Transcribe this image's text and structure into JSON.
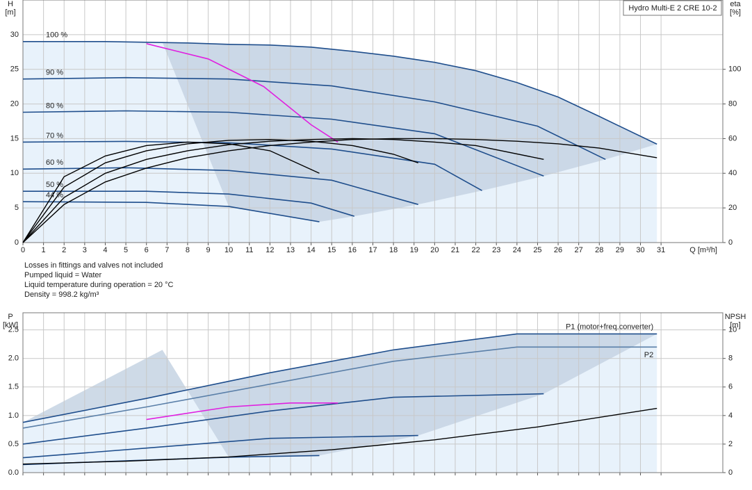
{
  "chart_data": [
    {
      "type": "line",
      "title": "Hydro Multi-E 2 CRE 10-2",
      "x_label": "Q [m³/h]",
      "y_label": [
        "H",
        "[m]"
      ],
      "y2_label": [
        "eta",
        "[%]"
      ],
      "notes": [
        "Losses in fittings and valves not included",
        "Pumped liquid = Water",
        "Liquid temperature during operation = 20 °C",
        "Density = 998.2 kg/m³"
      ],
      "xlim": [
        0,
        34
      ],
      "xticks": [
        0,
        1,
        2,
        3,
        4,
        5,
        6,
        7,
        8,
        9,
        10,
        11,
        12,
        13,
        14,
        15,
        16,
        17,
        18,
        19,
        20,
        21,
        22,
        23,
        24,
        25,
        26,
        27,
        28,
        29,
        30,
        31
      ],
      "ylim": [
        0,
        35
      ],
      "yticks": [
        0,
        5,
        10,
        15,
        20,
        25,
        30
      ],
      "y2lim": [
        0,
        140
      ],
      "y2ticks": [
        0,
        20,
        40,
        60,
        80,
        100
      ],
      "grid": true,
      "series_label": "start",
      "shade": true,
      "series": [
        {
          "name": "100 %",
          "color": "#1f4e8c",
          "x": [
            0,
            2,
            4,
            6,
            8,
            10,
            12,
            14,
            16,
            18,
            20,
            22,
            24,
            26,
            28,
            30.8
          ],
          "values": [
            29,
            29,
            29,
            28.9,
            28.8,
            28.6,
            28.5,
            28.2,
            27.6,
            26.9,
            26,
            24.8,
            23.1,
            21,
            18.2,
            14.2
          ]
        },
        {
          "name": "90 %",
          "color": "#1f4e8c",
          "x": [
            0,
            5,
            10,
            15,
            20,
            25,
            28.3
          ],
          "values": [
            23.6,
            23.8,
            23.6,
            22.6,
            20.3,
            16.8,
            12
          ]
        },
        {
          "name": "80 %",
          "color": "#1f4e8c",
          "x": [
            0,
            5,
            10,
            15,
            20,
            25.3
          ],
          "values": [
            18.8,
            19,
            18.8,
            17.8,
            15.7,
            9.6
          ]
        },
        {
          "name": "70 %",
          "color": "#1f4e8c",
          "x": [
            0,
            5,
            10,
            15,
            20,
            22.3
          ],
          "values": [
            14.5,
            14.6,
            14.4,
            13.5,
            11.3,
            7.5
          ]
        },
        {
          "name": "60 %",
          "color": "#1f4e8c",
          "x": [
            0,
            5,
            10,
            15,
            19.2
          ],
          "values": [
            10.6,
            10.8,
            10.4,
            9,
            5.5
          ]
        },
        {
          "name": "50 %",
          "color": "#1f4e8c",
          "x": [
            0,
            6,
            10,
            14,
            16.1
          ],
          "values": [
            7.4,
            7.4,
            7,
            5.7,
            3.8
          ]
        },
        {
          "name": "44 %",
          "color": "#1f4e8c",
          "x": [
            0,
            6,
            10,
            14.4
          ],
          "values": [
            5.9,
            5.8,
            5.2,
            3
          ]
        },
        {
          "color": "#e020e0",
          "x": [
            6,
            9,
            11.7,
            14,
            15.3
          ],
          "values": [
            28.7,
            26.5,
            22.5,
            17,
            14.5
          ]
        },
        {
          "color": "#000000",
          "axis": "y2",
          "x": [
            0,
            2,
            4,
            6,
            8,
            10,
            12,
            14,
            16,
            18,
            20,
            22,
            24,
            26,
            28,
            30.8
          ],
          "values": [
            0,
            22,
            35,
            43,
            49,
            53,
            56,
            58,
            59.5,
            60,
            60,
            59.5,
            58.5,
            57,
            54.5,
            49
          ]
        },
        {
          "color": "#000000",
          "axis": "y2",
          "x": [
            0,
            2,
            4,
            6,
            8,
            10,
            12,
            14,
            16,
            18,
            20,
            22,
            25.3
          ],
          "values": [
            0,
            26,
            40,
            48,
            53,
            56.5,
            58.5,
            59.5,
            60,
            59.5,
            58,
            56,
            48
          ]
        },
        {
          "color": "#000000",
          "axis": "y2",
          "x": [
            0,
            2,
            4,
            6,
            8,
            10,
            12,
            14,
            16,
            18,
            19.2
          ],
          "values": [
            0,
            32,
            46,
            53,
            57,
            59,
            59.5,
            58.5,
            56,
            51,
            46
          ]
        },
        {
          "color": "#000000",
          "axis": "y2",
          "x": [
            0,
            2,
            4,
            6,
            8,
            10,
            12,
            14.4
          ],
          "values": [
            0,
            38,
            50,
            56,
            58,
            57,
            53,
            40
          ]
        }
      ]
    },
    {
      "type": "line",
      "y_label": [
        "P",
        "[kW]"
      ],
      "y2_label": [
        "NPSH",
        "[m]"
      ],
      "xlim": [
        0,
        34
      ],
      "ylim": [
        0,
        2.8
      ],
      "yticks": [
        {
          "value": 0,
          "label": "0.0"
        },
        {
          "value": 0.5,
          "label": "0.5"
        },
        {
          "value": 1,
          "label": "1.0"
        },
        {
          "value": 1.5,
          "label": "1.5"
        },
        {
          "value": 2,
          "label": "2.0"
        },
        {
          "value": 2.5,
          "label": "2.5"
        }
      ],
      "y2lim": [
        0,
        11.2
      ],
      "y2ticks": [
        0,
        2,
        4,
        6,
        8,
        10
      ],
      "grid": true,
      "series_label": "end",
      "shade": true,
      "series": [
        {
          "name": "P1 (motor+freq.converter)",
          "color": "#1f4e8c",
          "x": [
            0,
            6,
            12,
            18,
            24,
            30.8
          ],
          "values": [
            0.88,
            1.3,
            1.75,
            2.15,
            2.43,
            2.43
          ]
        },
        {
          "color": "#1f4e8c",
          "x": [
            0,
            6,
            12,
            18,
            25.3
          ],
          "values": [
            0.5,
            0.78,
            1.08,
            1.32,
            1.38
          ]
        },
        {
          "color": "#1f4e8c",
          "x": [
            0,
            6,
            12,
            19.2
          ],
          "values": [
            0.26,
            0.43,
            0.6,
            0.65
          ]
        },
        {
          "color": "#1f4e8c",
          "x": [
            0,
            6,
            10,
            14.4
          ],
          "values": [
            0.14,
            0.22,
            0.27,
            0.3
          ]
        },
        {
          "name": "P2",
          "color": "#5a7fa8",
          "x": [
            0,
            6,
            12,
            18,
            24,
            30.8
          ],
          "values": [
            0.78,
            1.15,
            1.55,
            1.95,
            2.2,
            2.2
          ]
        },
        {
          "color": "#e020e0",
          "x": [
            6,
            10,
            13,
            15.3
          ],
          "values": [
            0.93,
            1.15,
            1.22,
            1.22
          ]
        },
        {
          "color": "#000000",
          "axis": "y2",
          "x": [
            0,
            5,
            10,
            15,
            20,
            25,
            30.8
          ],
          "values": [
            0.6,
            0.8,
            1.1,
            1.6,
            2.3,
            3.2,
            4.5
          ]
        }
      ]
    }
  ]
}
